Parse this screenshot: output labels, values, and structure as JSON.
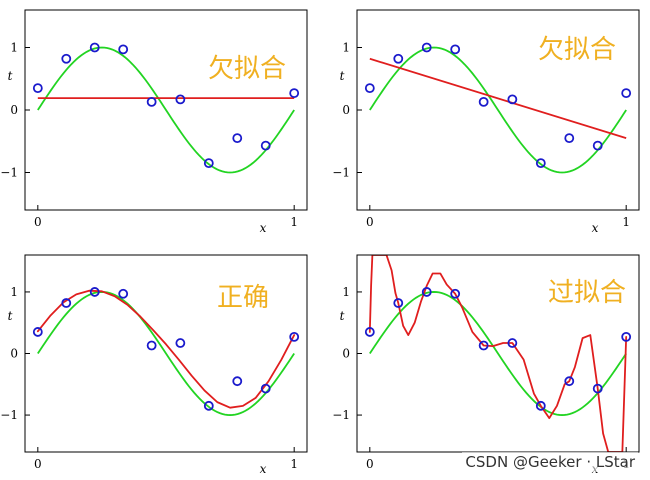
{
  "colors": {
    "truth": "#22d422",
    "fit": "#e01e1e",
    "points": "#1a1acc",
    "annotation": "#f0b021",
    "frame": "#000000"
  },
  "chart_data": [
    {
      "type": "line",
      "title": "欠拟合",
      "xlabel": "x",
      "ylabel": "t",
      "xlim": [
        -0.05,
        1.05
      ],
      "ylim": [
        -1.6,
        1.6
      ],
      "xticks": [
        "0",
        "1"
      ],
      "yticks": [
        "1",
        "0",
        "−1"
      ],
      "grid": false,
      "points": {
        "x": [
          0,
          0.111,
          0.222,
          0.333,
          0.444,
          0.556,
          0.667,
          0.778,
          0.889,
          1.0
        ],
        "y": [
          0.35,
          0.82,
          1.0,
          0.97,
          0.13,
          0.17,
          -0.85,
          -0.45,
          -0.57,
          0.27
        ]
      },
      "series": [
        {
          "role": "truth",
          "function": "sin(2*pi*x)"
        },
        {
          "role": "fit",
          "polynomial_degree": 0,
          "x": [
            0,
            1
          ],
          "y": [
            0.19,
            0.19
          ]
        }
      ]
    },
    {
      "type": "line",
      "title": "欠拟合",
      "xlabel": "x",
      "ylabel": "t",
      "xlim": [
        -0.05,
        1.05
      ],
      "ylim": [
        -1.6,
        1.6
      ],
      "xticks": [
        "0",
        "1"
      ],
      "yticks": [
        "1",
        "0",
        "−1"
      ],
      "grid": false,
      "points": {
        "x": [
          0,
          0.111,
          0.222,
          0.333,
          0.444,
          0.556,
          0.667,
          0.778,
          0.889,
          1.0
        ],
        "y": [
          0.35,
          0.82,
          1.0,
          0.97,
          0.13,
          0.17,
          -0.85,
          -0.45,
          -0.57,
          0.27
        ]
      },
      "series": [
        {
          "role": "truth",
          "function": "sin(2*pi*x)"
        },
        {
          "role": "fit",
          "polynomial_degree": 1,
          "x": [
            0,
            1
          ],
          "y": [
            0.82,
            -0.45
          ]
        }
      ]
    },
    {
      "type": "line",
      "title": "正确",
      "xlabel": "x",
      "ylabel": "t",
      "xlim": [
        -0.05,
        1.05
      ],
      "ylim": [
        -1.6,
        1.6
      ],
      "xticks": [
        "0",
        "1"
      ],
      "yticks": [
        "1",
        "0",
        "−1"
      ],
      "grid": false,
      "points": {
        "x": [
          0,
          0.111,
          0.222,
          0.333,
          0.444,
          0.556,
          0.667,
          0.778,
          0.889,
          1.0
        ],
        "y": [
          0.35,
          0.82,
          1.0,
          0.97,
          0.13,
          0.17,
          -0.85,
          -0.45,
          -0.57,
          0.27
        ]
      },
      "series": [
        {
          "role": "truth",
          "function": "sin(2*pi*x)"
        },
        {
          "role": "fit",
          "polynomial_degree": 3,
          "x": [
            0,
            0.05,
            0.1,
            0.15,
            0.2,
            0.25,
            0.3,
            0.35,
            0.4,
            0.45,
            0.5,
            0.55,
            0.6,
            0.65,
            0.7,
            0.75,
            0.8,
            0.85,
            0.9,
            0.95,
            1.0
          ],
          "y": [
            0.36,
            0.62,
            0.83,
            0.96,
            1.02,
            1.01,
            0.93,
            0.79,
            0.6,
            0.38,
            0.15,
            -0.1,
            -0.36,
            -0.6,
            -0.79,
            -0.88,
            -0.85,
            -0.72,
            -0.45,
            -0.1,
            0.3
          ]
        }
      ]
    },
    {
      "type": "line",
      "title": "过拟合",
      "xlabel": "x",
      "ylabel": "t",
      "xlim": [
        -0.05,
        1.05
      ],
      "ylim": [
        -1.6,
        1.6
      ],
      "xticks": [
        "0",
        "1"
      ],
      "yticks": [
        "1",
        "0",
        "−1"
      ],
      "grid": false,
      "points": {
        "x": [
          0,
          0.111,
          0.222,
          0.333,
          0.444,
          0.556,
          0.667,
          0.778,
          0.889,
          1.0
        ],
        "y": [
          0.35,
          0.82,
          1.0,
          0.97,
          0.13,
          0.17,
          -0.85,
          -0.45,
          -0.57,
          0.27
        ]
      },
      "series": [
        {
          "role": "truth",
          "function": "sin(2*pi*x)"
        },
        {
          "role": "fit",
          "polynomial_degree": 9,
          "x": [
            0,
            0.005,
            0.01,
            0.02,
            0.03,
            0.045,
            0.065,
            0.085,
            0.1,
            0.111,
            0.13,
            0.15,
            0.175,
            0.2,
            0.222,
            0.245,
            0.275,
            0.3,
            0.333,
            0.36,
            0.4,
            0.444,
            0.48,
            0.52,
            0.556,
            0.6,
            0.64,
            0.667,
            0.7,
            0.73,
            0.76,
            0.778,
            0.8,
            0.83,
            0.86,
            0.889,
            0.91,
            0.93,
            0.95,
            0.97,
            0.985,
            1.0
          ],
          "y": [
            0.35,
            1.1,
            1.6,
            1.6,
            1.6,
            1.6,
            1.6,
            1.35,
            0.98,
            0.82,
            0.45,
            0.3,
            0.5,
            0.85,
            1.1,
            1.3,
            1.3,
            1.12,
            0.97,
            0.75,
            0.35,
            0.13,
            0.12,
            0.17,
            0.17,
            -0.1,
            -0.65,
            -0.85,
            -1.05,
            -0.85,
            -0.5,
            -0.45,
            -0.22,
            0.25,
            0.3,
            -0.57,
            -1.3,
            -1.6,
            -1.6,
            -1.6,
            -1.6,
            0.27
          ]
        }
      ]
    }
  ],
  "watermark": "CSDN @Geeker · LStar"
}
